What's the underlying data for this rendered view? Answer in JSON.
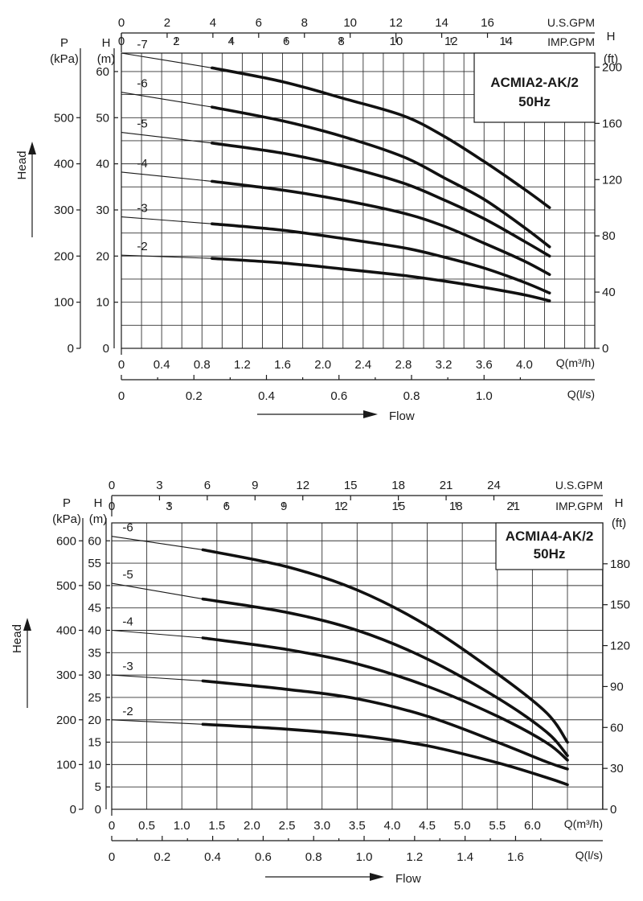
{
  "chart_data": [
    {
      "type": "line",
      "title": "ACMIA2-AK/2",
      "subtitle": "50Hz",
      "xlabel": "Flow",
      "ylabel": "Head",
      "units": {
        "p_left": "P",
        "p_left_unit": "(kPa)",
        "h_left": "H",
        "h_left_unit": "(m)",
        "h_right": "H",
        "h_right_unit": "(ft)",
        "top1": "U.S.GPM",
        "top2": "IMP.GPM",
        "bottom1": "Q(m³/h)",
        "bottom2": "Q(l/s)"
      },
      "xlim": [
        0,
        4.3
      ],
      "ylim": [
        0,
        64
      ],
      "axes": {
        "x_m3h_ticks": [
          "0",
          "0.4",
          "0.8",
          "1.2",
          "1.6",
          "2.0",
          "2.4",
          "2.8",
          "3.2",
          "3.6",
          "4.0"
        ],
        "x_ls_ticks": [
          "0",
          "0.2",
          "0.4",
          "0.6",
          "0.8",
          "1.0"
        ],
        "top_usgpm_ticks": [
          "0",
          "2",
          "4",
          "6",
          "8",
          "10",
          "12",
          "14",
          "16"
        ],
        "top_impgpm_ticks": [
          "0",
          "2",
          "4",
          "6",
          "8",
          "10",
          "12",
          "14"
        ],
        "y_m_ticks": [
          "10",
          "20",
          "30",
          "40",
          "50",
          "60"
        ],
        "y_kpa_ticks": [
          "0",
          "100",
          "200",
          "300",
          "400",
          "500"
        ],
        "y_ft_ticks": [
          "0",
          "40",
          "80",
          "120",
          "160",
          "200"
        ],
        "y_zero_label": "0"
      },
      "series": [
        {
          "name": "-2",
          "label": "-2",
          "x": [
            0,
            0.9,
            1.6,
            2.2,
            2.8,
            3.2,
            3.6,
            4.0,
            4.25
          ],
          "values": [
            20.2,
            19.5,
            18.5,
            17.2,
            15.8,
            14.6,
            13.2,
            11.6,
            10.3
          ]
        },
        {
          "name": "-3",
          "label": "-3",
          "x": [
            0,
            0.9,
            1.6,
            2.2,
            2.8,
            3.2,
            3.6,
            4.0,
            4.25
          ],
          "values": [
            28.5,
            27.0,
            25.6,
            23.8,
            21.8,
            19.8,
            17.4,
            14.3,
            12.0
          ]
        },
        {
          "name": "-4",
          "label": "-4",
          "x": [
            0,
            0.9,
            1.6,
            2.2,
            2.8,
            3.2,
            3.6,
            4.0,
            4.25
          ],
          "values": [
            38.2,
            36.2,
            34.3,
            32.1,
            29.3,
            26.5,
            22.8,
            18.9,
            16.0
          ]
        },
        {
          "name": "-5",
          "label": "-5",
          "x": [
            0,
            0.9,
            1.6,
            2.2,
            2.8,
            3.2,
            3.6,
            4.0,
            4.25
          ],
          "values": [
            46.8,
            44.5,
            42.3,
            39.5,
            35.8,
            32.2,
            28.1,
            23.2,
            20.0
          ]
        },
        {
          "name": "-6",
          "label": "-6",
          "x": [
            0,
            0.9,
            1.6,
            2.2,
            2.8,
            3.2,
            3.6,
            4.0,
            4.25
          ],
          "values": [
            55.5,
            52.3,
            49.3,
            45.9,
            41.5,
            37.0,
            32.3,
            26.2,
            22.0
          ]
        },
        {
          "name": "-7",
          "label": "-7",
          "x": [
            0,
            0.9,
            1.6,
            2.2,
            2.8,
            3.2,
            3.6,
            4.0,
            4.25
          ],
          "values": [
            64.0,
            60.8,
            57.8,
            54.2,
            50.4,
            46.0,
            40.5,
            34.5,
            30.5
          ]
        }
      ],
      "thin_segment_end_x": 0.9,
      "grid": true
    },
    {
      "type": "line",
      "title": "ACMIA4-AK/2",
      "subtitle": "50Hz",
      "xlabel": "Flow",
      "ylabel": "Head",
      "units": {
        "p_left": "P",
        "p_left_unit": "(kPa)",
        "h_left": "H",
        "h_left_unit": "(m)",
        "h_right": "H",
        "h_right_unit": "(ft)",
        "top1": "U.S.GPM",
        "top2": "IMP.GPM",
        "bottom1": "Q(m³/h)",
        "bottom2": "Q(l/s)"
      },
      "xlim": [
        0,
        6.5
      ],
      "ylim": [
        0,
        64
      ],
      "axes": {
        "x_m3h_ticks": [
          "0",
          "0.5",
          "1.0",
          "1.5",
          "2.0",
          "2.5",
          "3.0",
          "3.5",
          "4.0",
          "4.5",
          "5.0",
          "5.5",
          "6.0"
        ],
        "x_ls_ticks": [
          "0",
          "0.2",
          "0.4",
          "0.6",
          "0.8",
          "1.0",
          "1.2",
          "1.4",
          "1.6"
        ],
        "top_usgpm_ticks": [
          "0",
          "3",
          "6",
          "9",
          "12",
          "15",
          "18",
          "21",
          "24"
        ],
        "top_impgpm_ticks": [
          "0",
          "3",
          "6",
          "9",
          "12",
          "15",
          "18",
          "21"
        ],
        "y_m_ticks": [
          "5",
          "10",
          "15",
          "20",
          "25",
          "30",
          "35",
          "40",
          "45",
          "50",
          "55",
          "60"
        ],
        "y_kpa_ticks": [
          "0",
          "100",
          "200",
          "300",
          "400",
          "500",
          "600"
        ],
        "y_ft_ticks": [
          "0",
          "30",
          "60",
          "90",
          "120",
          "150",
          "180"
        ],
        "y_zero_label": "0"
      },
      "series": [
        {
          "name": "-2",
          "label": "-2",
          "x": [
            0,
            1.3,
            2.5,
            3.5,
            4.5,
            5.5,
            6.2,
            6.5
          ],
          "values": [
            20.0,
            19.0,
            17.9,
            16.5,
            14.2,
            10.4,
            7.1,
            5.5
          ]
        },
        {
          "name": "-3",
          "label": "-3",
          "x": [
            0,
            1.3,
            2.5,
            3.5,
            4.5,
            5.5,
            6.2,
            6.5
          ],
          "values": [
            30.0,
            28.7,
            26.8,
            24.7,
            20.8,
            15.0,
            10.6,
            9.0
          ]
        },
        {
          "name": "-4",
          "label": "-4",
          "x": [
            0,
            1.3,
            2.5,
            3.5,
            4.5,
            5.5,
            6.2,
            6.5
          ],
          "values": [
            40.0,
            38.3,
            35.7,
            32.5,
            27.5,
            20.8,
            14.9,
            11.0
          ]
        },
        {
          "name": "-5",
          "label": "-5",
          "x": [
            0,
            1.3,
            2.5,
            3.5,
            4.5,
            5.5,
            6.2,
            6.5
          ],
          "values": [
            50.5,
            47.0,
            44.0,
            40.0,
            33.6,
            24.9,
            17.3,
            12.0
          ]
        },
        {
          "name": "-6",
          "label": "-6",
          "x": [
            0,
            1.3,
            2.5,
            3.5,
            4.5,
            5.5,
            6.2,
            6.5
          ],
          "values": [
            61.0,
            58.0,
            54.2,
            49.0,
            41.0,
            30.3,
            21.6,
            15.0
          ]
        }
      ],
      "thin_segment_end_x": 1.3,
      "grid": true
    }
  ]
}
